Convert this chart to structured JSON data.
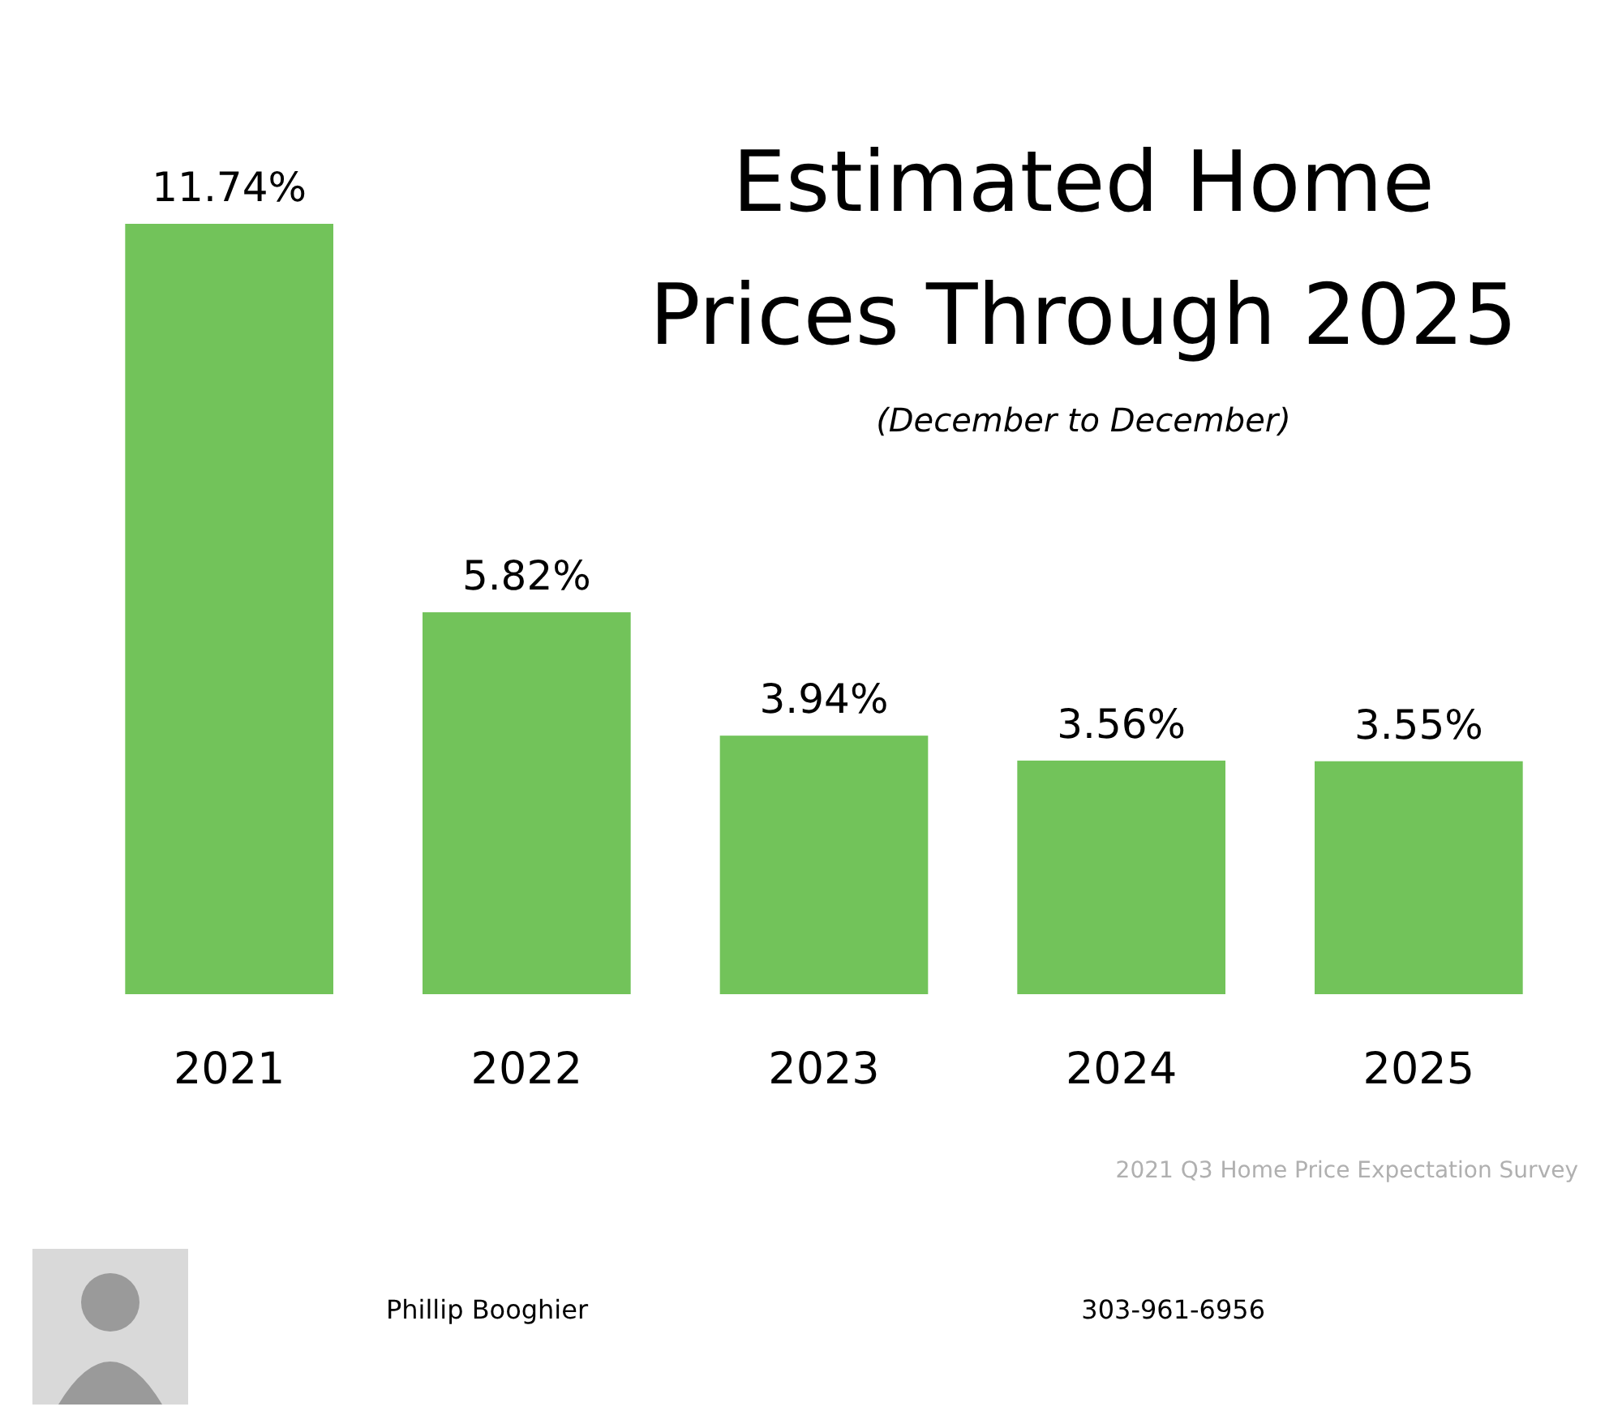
{
  "chart_data": {
    "type": "bar",
    "title": "Estimated Home Prices Through 2025",
    "subtitle": "(December to December)",
    "categories": [
      "2021",
      "2022",
      "2023",
      "2024",
      "2025"
    ],
    "values": [
      11.74,
      5.82,
      3.94,
      3.56,
      3.55
    ],
    "value_labels": [
      "11.74%",
      "5.82%",
      "3.94%",
      "3.56%",
      "3.55%"
    ],
    "color": "#72c35a",
    "annotations": [
      "2021 Q3 Home Price Expectation Survey",
      "Phillip Booghier",
      "303-961-6956"
    ]
  }
}
